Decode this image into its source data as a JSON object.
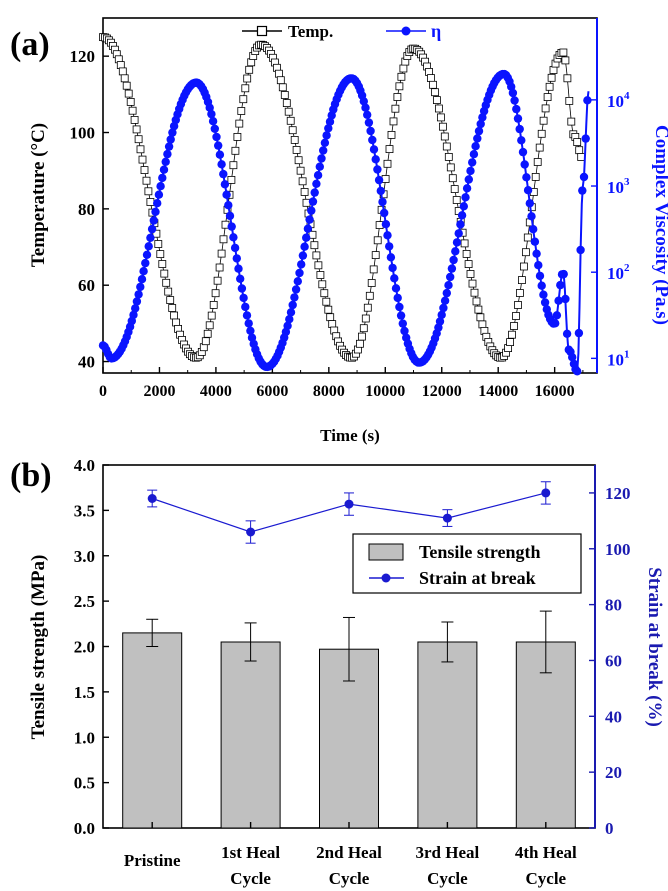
{
  "colors": {
    "temp_series": "#000000",
    "viscosity_series": "#0a14ff",
    "right_axis_a": "#0a14ff",
    "right_axis_b": "#1a1ab0",
    "bar_fill": "#c0c0c0",
    "strain_series": "#1a1ad0"
  },
  "chart_data": [
    {
      "panel_label": "(a)",
      "type": "line",
      "xlabel": "Time (s)",
      "ylabel_left": "Temperature (°C)",
      "ylabel_right": "Complex Viscosity (Pa.s)",
      "xlim": [
        0,
        17500
      ],
      "ylim_left": [
        37,
        130
      ],
      "ylim_right_log10": [
        0.83,
        4.95
      ],
      "right_scale": "log",
      "x_ticks": [
        "0",
        "2000",
        "4000",
        "6000",
        "8000",
        "10000",
        "12000",
        "14000",
        "16000"
      ],
      "y_ticks_left": [
        "40",
        "60",
        "80",
        "100",
        "120"
      ],
      "y_ticks_right": [
        {
          "base": "10",
          "exp": "1"
        },
        {
          "base": "10",
          "exp": "2"
        },
        {
          "base": "10",
          "exp": "3"
        },
        {
          "base": "10",
          "exp": "4"
        }
      ],
      "legend": [
        {
          "name": "Temp.",
          "marker": "open-square"
        },
        {
          "name": "η",
          "marker": "filled-circle"
        }
      ],
      "series": [
        {
          "name": "Temp.",
          "axis": "left",
          "marker": "open-square",
          "knots": [
            [
              0,
              125
            ],
            [
              3300,
              41
            ],
            [
              5600,
              123
            ],
            [
              8800,
              41
            ],
            [
              11000,
              122
            ],
            [
              14100,
              41
            ],
            [
              16300,
              121
            ],
            [
              16700,
              99
            ],
            [
              17000,
              93
            ]
          ]
        },
        {
          "name": "η",
          "axis": "right",
          "marker": "filled-circle",
          "knots": [
            [
              0,
              1.15
            ],
            [
              300,
              1.0
            ],
            [
              3300,
              4.2
            ],
            [
              5800,
              0.9
            ],
            [
              8800,
              4.25
            ],
            [
              11200,
              0.95
            ],
            [
              14200,
              4.3
            ],
            [
              16000,
              1.4
            ],
            [
              16300,
              2.0
            ],
            [
              16500,
              1.1
            ],
            [
              16800,
              0.85
            ],
            [
              17000,
              3.0
            ],
            [
              17200,
              4.1
            ]
          ]
        }
      ]
    },
    {
      "panel_label": "(b)",
      "type": "bar",
      "ylabel_left": "Tensile strength (MPa)",
      "ylabel_right": "Strain at break (%)",
      "categories": [
        [
          "Pristine"
        ],
        [
          "1st Heal",
          "Cycle"
        ],
        [
          "2nd Heal",
          "Cycle"
        ],
        [
          "3rd Heal",
          "Cycle"
        ],
        [
          "4th Heal",
          "Cycle"
        ]
      ],
      "ylim_left": [
        0,
        4.0
      ],
      "ylim_right": [
        0,
        130
      ],
      "y_ticks_left": [
        "0.0",
        "0.5",
        "1.0",
        "1.5",
        "2.0",
        "2.5",
        "3.0",
        "3.5",
        "4.0"
      ],
      "y_ticks_right": [
        "0",
        "20",
        "40",
        "60",
        "80",
        "100",
        "120"
      ],
      "legend": [
        {
          "name": "Tensile strength",
          "marker": "bar"
        },
        {
          "name": "Strain at break",
          "marker": "line-circle"
        }
      ],
      "series": [
        {
          "name": "Tensile strength",
          "axis": "left",
          "values": [
            2.15,
            2.05,
            1.97,
            2.05,
            2.05
          ],
          "errors": [
            0.15,
            0.21,
            0.35,
            0.22,
            0.34
          ]
        },
        {
          "name": "Strain at break",
          "axis": "right",
          "values": [
            118,
            106,
            116,
            111,
            120
          ],
          "errors": [
            3,
            4,
            4,
            3,
            4
          ]
        }
      ]
    }
  ]
}
